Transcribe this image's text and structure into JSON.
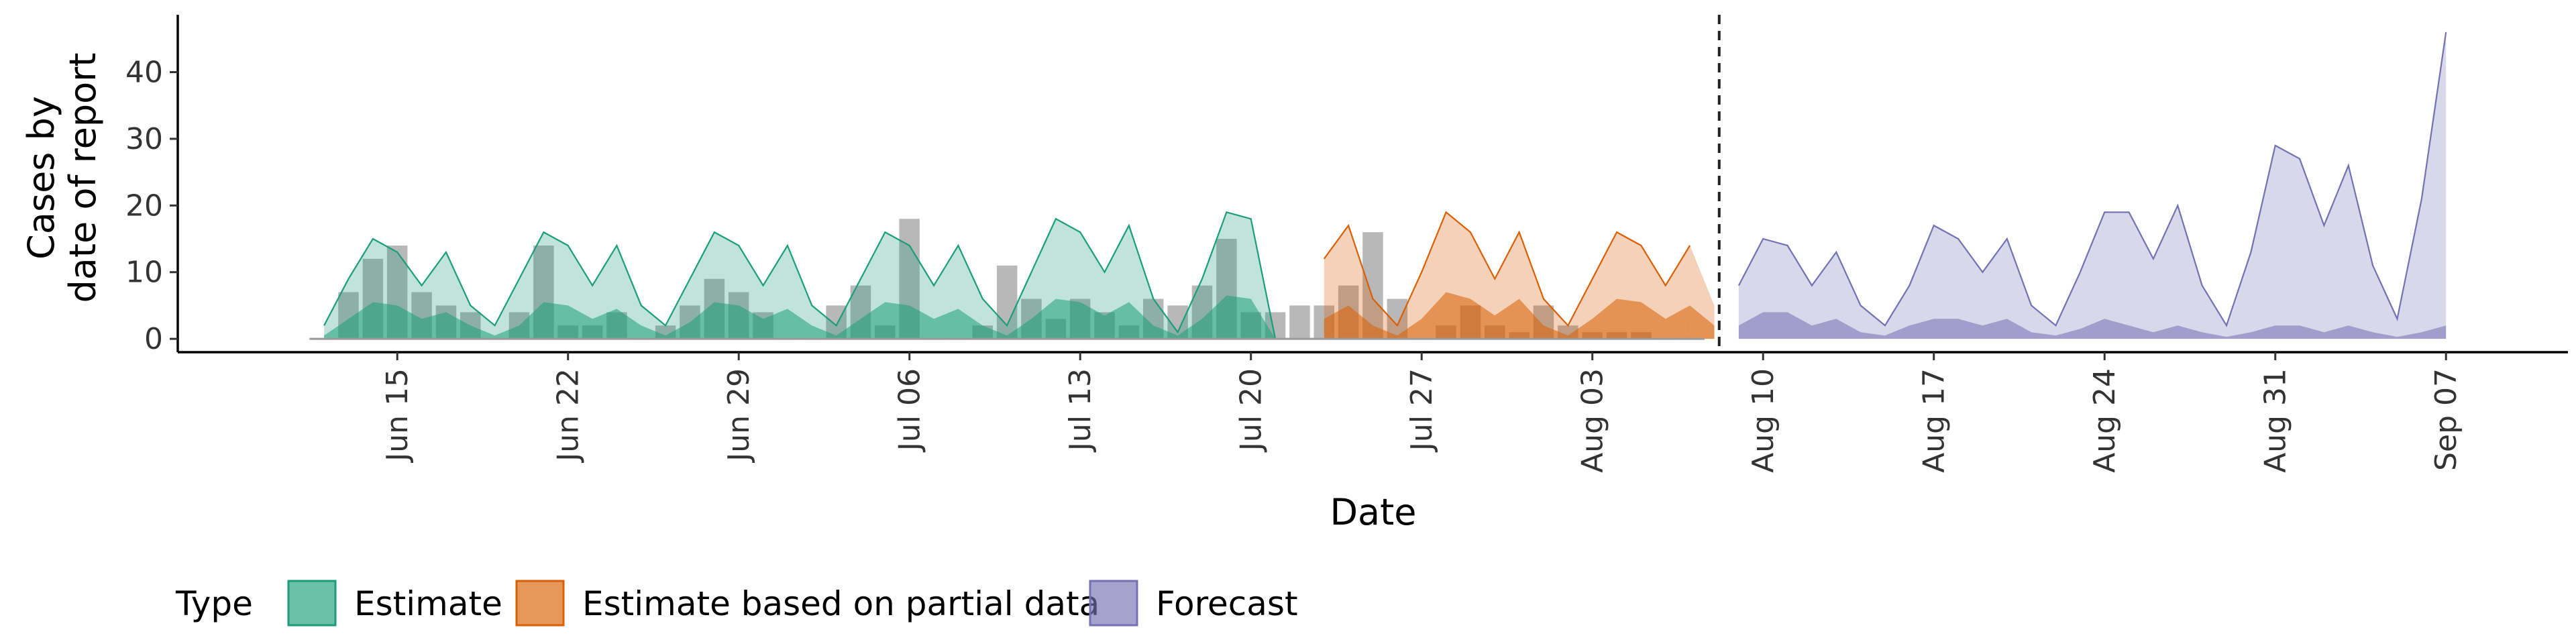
{
  "chart_data": {
    "type": "area",
    "xlabel": "Date",
    "ylabel_lines": [
      "Cases by",
      "date of report"
    ],
    "ylim": [
      -2,
      48
    ],
    "yticks": [
      0,
      10,
      20,
      30,
      40
    ],
    "x_start": "2020-06-12",
    "xlim_days": [
      -6,
      92
    ],
    "xticks": [
      {
        "label": "Jun 15",
        "day": 3
      },
      {
        "label": "Jun 22",
        "day": 10
      },
      {
        "label": "Jun 29",
        "day": 17
      },
      {
        "label": "Jul 06",
        "day": 24
      },
      {
        "label": "Jul 13",
        "day": 31
      },
      {
        "label": "Jul 20",
        "day": 38
      },
      {
        "label": "Jul 27",
        "day": 45
      },
      {
        "label": "Aug 03",
        "day": 52
      },
      {
        "label": "Aug 10",
        "day": 59
      },
      {
        "label": "Aug 17",
        "day": 66
      },
      {
        "label": "Aug 24",
        "day": 73
      },
      {
        "label": "Aug 31",
        "day": 80
      },
      {
        "label": "Sep 07",
        "day": 87
      }
    ],
    "forecast_start_day": 57.2,
    "legend": {
      "title": "Type",
      "placement": "bottom-left",
      "entries": [
        "Estimate",
        "Estimate based on partial data",
        "Forecast"
      ]
    },
    "colors": {
      "Estimate": "#1b9e77",
      "Estimate based on partial data": "#d95f02",
      "Forecast": "#7570b3",
      "observed": "#a0a0a0"
    },
    "observed_bars": {
      "day": [
        0,
        1,
        2,
        3,
        4,
        5,
        6,
        7,
        8,
        9,
        10,
        11,
        12,
        13,
        14,
        15,
        16,
        17,
        18,
        19,
        20,
        21,
        22,
        23,
        24,
        25,
        26,
        27,
        28,
        29,
        30,
        31,
        32,
        33,
        34,
        35,
        36,
        37,
        38,
        39,
        40,
        41,
        42,
        43,
        44,
        45,
        46,
        47,
        48,
        49,
        50,
        51,
        52,
        53,
        54,
        55,
        56
      ],
      "value": [
        0,
        7,
        12,
        14,
        7,
        5,
        4,
        0,
        4,
        14,
        2,
        2,
        4,
        0,
        2,
        5,
        9,
        7,
        4,
        0,
        0,
        5,
        8,
        2,
        18,
        0,
        0,
        2,
        11,
        6,
        3,
        6,
        4,
        2,
        6,
        5,
        8,
        15,
        4,
        4,
        5,
        5,
        8,
        16,
        6,
        0,
        2,
        5,
        2,
        1,
        5,
        2,
        1,
        1,
        1,
        0,
        0
      ]
    },
    "series": [
      {
        "name": "Estimate",
        "x": [
          0,
          1,
          2,
          3,
          4,
          5,
          6,
          7,
          8,
          9,
          10,
          11,
          12,
          13,
          14,
          15,
          16,
          17,
          18,
          19,
          20,
          21,
          22,
          23,
          24,
          25,
          26,
          27,
          28,
          29,
          30,
          31,
          32,
          33,
          34,
          35,
          36,
          37,
          38,
          39,
          40
        ],
        "upper": [
          2,
          9,
          15,
          13,
          8,
          13,
          5,
          2,
          9,
          16,
          14,
          8,
          14,
          5,
          2,
          9,
          16,
          14,
          8,
          14,
          5,
          2,
          9,
          16,
          14,
          8,
          14,
          6,
          2,
          10,
          18,
          16,
          10,
          17,
          6,
          1,
          9,
          19,
          18,
          0,
          0
        ],
        "mid": [
          0.5,
          3,
          5.5,
          5,
          3,
          4,
          2,
          0.5,
          2,
          5.5,
          5,
          3,
          4.5,
          2,
          0.5,
          2.5,
          5.5,
          5,
          3,
          4.5,
          2,
          0.5,
          3,
          5.5,
          5,
          3,
          4.5,
          2,
          0.5,
          3,
          6,
          5.5,
          3.5,
          5.5,
          2,
          0.5,
          3,
          6.5,
          6,
          0,
          0
        ]
      },
      {
        "name": "Estimate based on partial data",
        "x": [
          41,
          42,
          43,
          44,
          45,
          46,
          47,
          48,
          49,
          50,
          51,
          52,
          53,
          54,
          55,
          56
        ],
        "upper": [
          12,
          17,
          6,
          2,
          10,
          19,
          16,
          9,
          16,
          6,
          2,
          9,
          16,
          14,
          8,
          14
        ],
        "mid": [
          3,
          5,
          2,
          0.5,
          3,
          7,
          6,
          3.5,
          6,
          2,
          0.5,
          3,
          6,
          5.5,
          3,
          5
        ],
        "extra_x": [
          57
        ],
        "extra_upper": [
          5
        ],
        "extra_mid": [
          2
        ]
      },
      {
        "name": "Forecast",
        "x": [
          58,
          59,
          60,
          61,
          62,
          63,
          64,
          65,
          66,
          67,
          68,
          69,
          70,
          71,
          72,
          73,
          74,
          75,
          76,
          77,
          78,
          79,
          80,
          81,
          82,
          83,
          84,
          85,
          86,
          87
        ],
        "upper": [
          8,
          15,
          14,
          8,
          13,
          5,
          2,
          8,
          17,
          15,
          10,
          15,
          5,
          2,
          10,
          19,
          19,
          12,
          20,
          8,
          2,
          13,
          29,
          27,
          17,
          26,
          11,
          3,
          21,
          46
        ],
        "mid": [
          2,
          4,
          4,
          2,
          3,
          1,
          0.5,
          2,
          3,
          3,
          2,
          3,
          1,
          0.5,
          1.5,
          3,
          2,
          1,
          2,
          1,
          0.3,
          1,
          2,
          2,
          1,
          2,
          1,
          0.3,
          1,
          2
        ]
      }
    ]
  }
}
